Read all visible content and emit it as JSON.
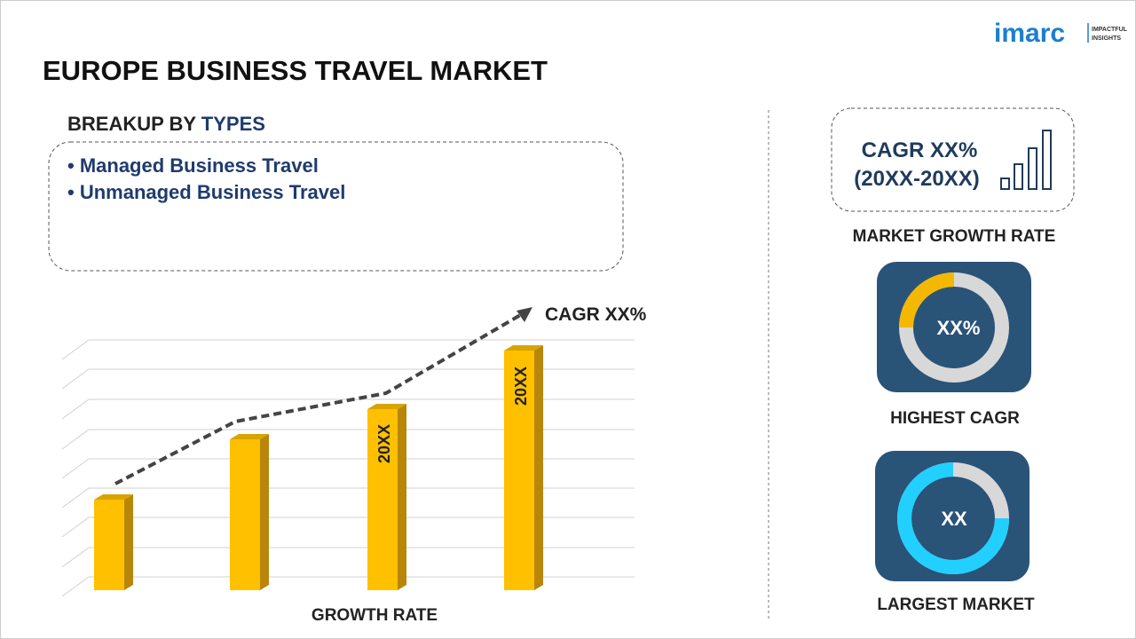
{
  "header": {
    "title": "EUROPE BUSINESS TRAVEL MARKET"
  },
  "logo": {
    "name": "imarc",
    "tagline": [
      "IMPACTFUL",
      "INSIGHTS"
    ]
  },
  "breakup": {
    "heading_prefix": "BREAKUP BY",
    "heading_highlight": "TYPES",
    "items": [
      "• Managed Business Travel",
      "• Unmanaged Business Travel"
    ]
  },
  "growth_chart": {
    "cagr_label": "CAGR XX%",
    "bar_labels": [
      "20XX",
      "20XX"
    ],
    "axis_label": "GROWTH RATE"
  },
  "panels": {
    "market_growth": {
      "lines": [
        "CAGR XX%",
        "(20XX-20XX)"
      ],
      "caption": "MARKET GROWTH RATE"
    },
    "highest_cagr": {
      "value": "XX%",
      "caption": "HIGHEST CAGR"
    },
    "largest_market": {
      "value": "XX",
      "caption": "LARGEST MARKET"
    }
  }
}
